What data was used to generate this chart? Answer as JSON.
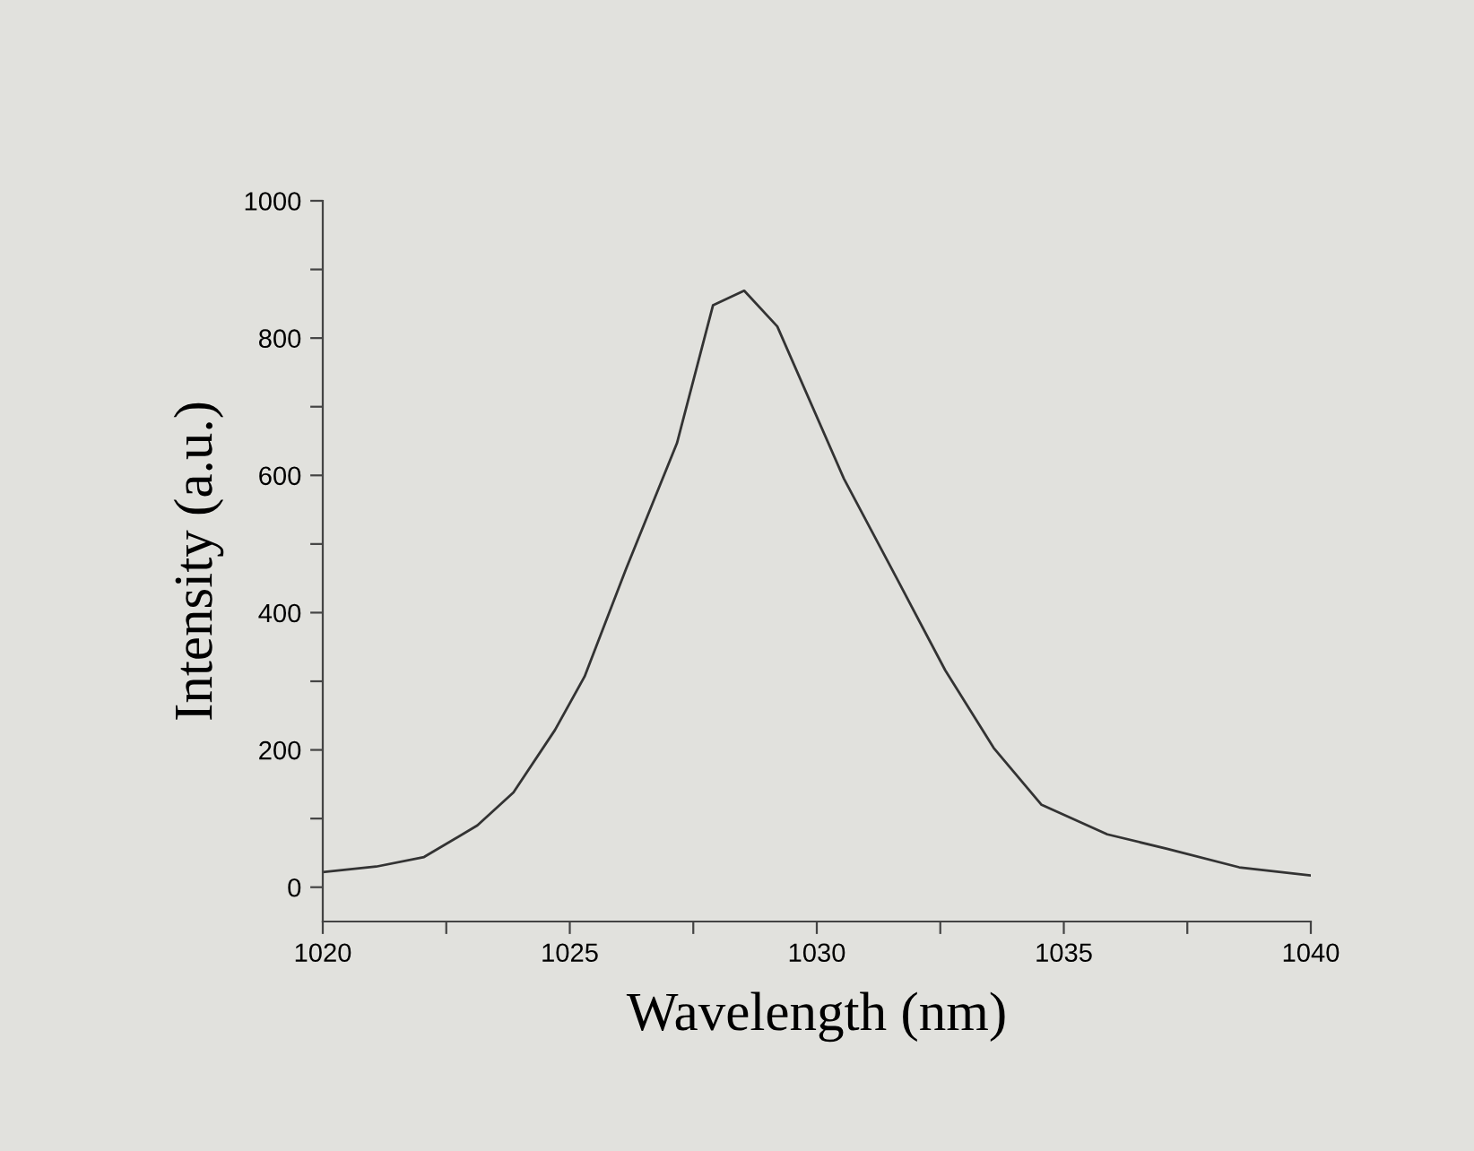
{
  "chart_data": {
    "type": "line",
    "xlabel": "Wavelength (nm)",
    "ylabel": "Intensity (a.u.)",
    "x": [
      1020,
      1021.08,
      1022.05,
      1023.13,
      1023.86,
      1024.7,
      1025.3,
      1026.14,
      1027.17,
      1027.9,
      1028.53,
      1029.2,
      1030.55,
      1031.64,
      1032.6,
      1033.58,
      1034.55,
      1035.88,
      1037.09,
      1038.55,
      1040
    ],
    "series": [
      {
        "color": "#333333",
        "values": [
          22,
          30,
          44,
          90,
          138,
          229,
          307,
          464,
          647,
          848,
          869,
          817,
          595,
          447,
          316,
          203,
          120,
          77,
          56,
          29,
          17
        ]
      }
    ],
    "xlim": [
      1020,
      1040
    ],
    "ylim": [
      -50,
      1000
    ],
    "xticks": [
      1020,
      {
        "value": 1022.5,
        "label": null
      },
      1025,
      {
        "value": 1027.5,
        "label": null
      },
      1030,
      {
        "value": 1032.5,
        "label": null
      },
      1035,
      {
        "value": 1037.5,
        "label": null
      },
      1040
    ],
    "yticks": [
      0,
      {
        "value": 100,
        "label": null
      },
      200,
      {
        "value": 300,
        "label": null
      },
      400,
      {
        "value": 500,
        "label": null
      },
      600,
      {
        "value": 700,
        "label": null
      },
      800,
      {
        "value": 900,
        "label": null
      },
      1000
    ],
    "grid": false,
    "legend": false,
    "marker": "none",
    "line_style": "solid"
  }
}
